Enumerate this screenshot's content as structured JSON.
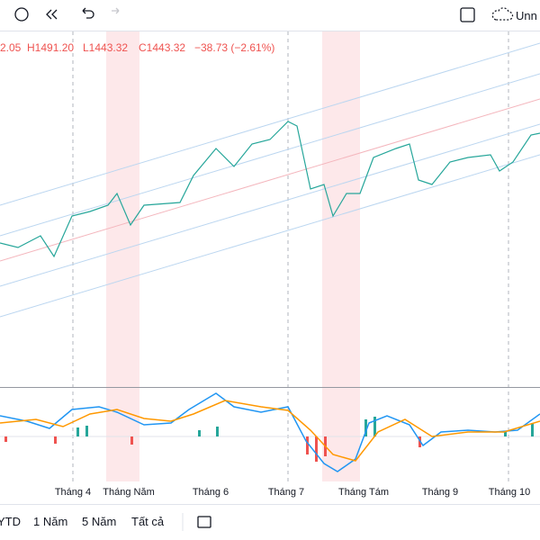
{
  "toolbar": {
    "layout_name": "Unn"
  },
  "legend": {
    "open": "2.05",
    "high": "H1491.20",
    "low": "L1443.32",
    "close": "C1443.32",
    "change": "−38.73 (−2.61%)"
  },
  "x_axis": [
    "Tháng 4",
    "Tháng Năm",
    "Tháng 6",
    "Tháng 7",
    "Tháng Tám",
    "Tháng 9",
    "Tháng 10"
  ],
  "ranges": [
    "YTD",
    "1 Năm",
    "5 Năm",
    "Tất cả"
  ]
}
